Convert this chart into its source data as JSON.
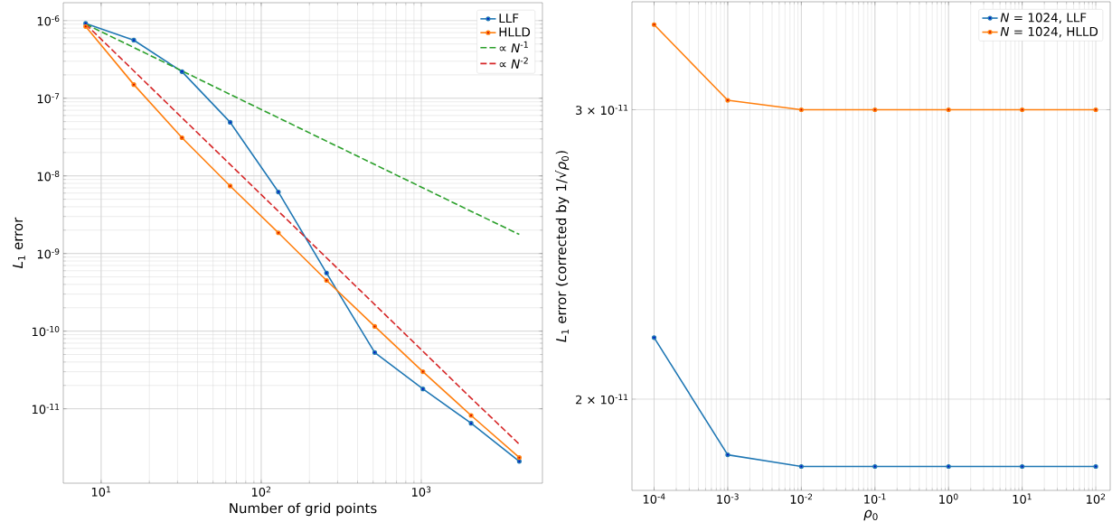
{
  "chart_data": [
    {
      "type": "line",
      "xlabel": "Number of grid points",
      "ylabel": "*L*$_{1}$ error",
      "log": "xy",
      "grid": true,
      "legend": "top right",
      "xlim": [
        5.8,
        5715
      ],
      "ylim": [
        1.1e-12,
        1.7e-06
      ],
      "xticks": [
        {
          "value": 10,
          "label": "10$^{1}$"
        },
        {
          "value": 100,
          "label": "10$^{2}$"
        },
        {
          "value": 1000,
          "label": "10$^{3}$"
        }
      ],
      "yticks": [
        {
          "value": 1e-11,
          "label": "10$^{-11}$"
        },
        {
          "value": 1e-10,
          "label": "10$^{-10}$"
        },
        {
          "value": 1e-09,
          "label": "10$^{-9}$"
        },
        {
          "value": 1e-08,
          "label": "10$^{-8}$"
        },
        {
          "value": 1e-07,
          "label": "10$^{-7}$"
        },
        {
          "value": 1e-06,
          "label": "10$^{-6}$"
        }
      ],
      "x": [
        8,
        16,
        32,
        64,
        128,
        256,
        512,
        1024,
        2048,
        4096
      ],
      "series": [
        {
          "name": "LLF",
          "color": "#1f77b4",
          "marker": "circle",
          "line_style": "solid",
          "values": [
            9.2e-07,
            5.6e-07,
            2.2e-07,
            4.9e-08,
            6.2e-09,
            5.6e-10,
            5.3e-11,
            1.8e-11,
            6.5e-12,
            2.1e-12
          ]
        },
        {
          "name": "HLLD",
          "color": "#ff7f0e",
          "marker": "circle",
          "line_style": "solid",
          "values": [
            8.4e-07,
            1.5e-07,
            3.1e-08,
            7.4e-09,
            1.85e-09,
            4.5e-10,
            1.15e-10,
            3e-11,
            8.2e-12,
            2.35e-12
          ]
        },
        {
          "name": "∝ *N*$^{-1}$",
          "color": "#2ca02c",
          "marker": "none",
          "line_style": "dashed",
          "values": [
            9e-07,
            4.5e-07,
            2.25e-07,
            1.12e-07,
            5.6e-08,
            2.8e-08,
            1.4e-08,
            7e-09,
            3.5e-09,
            1.76e-09
          ]
        },
        {
          "name": "∝ *N*$^{-2}$",
          "color": "#d62728",
          "marker": "none",
          "line_style": "dashed",
          "values": [
            9e-07,
            2.25e-07,
            5.6e-08,
            1.4e-08,
            3.5e-09,
            8.8e-10,
            2.2e-10,
            5.5e-11,
            1.37e-11,
            3.5e-12
          ]
        }
      ]
    },
    {
      "type": "line",
      "xlabel": "*ρ*$_{0}$",
      "ylabel": "*L*$_{1}$ error (corrected by 1/√*ρ*$_{0}$)",
      "log": "xy",
      "grid": true,
      "legend": "top right",
      "xlim": [
        5e-05,
        157
      ],
      "ylim": [
        1.76e-11,
        3.49e-11
      ],
      "xticks": [
        {
          "value": 0.0001,
          "label": "10$^{-4}$"
        },
        {
          "value": 0.001,
          "label": "10$^{-3}$"
        },
        {
          "value": 0.01,
          "label": "10$^{-2}$"
        },
        {
          "value": 0.1,
          "label": "10$^{-1}$"
        },
        {
          "value": 1,
          "label": "10$^{0}$"
        },
        {
          "value": 10,
          "label": "10$^{1}$"
        },
        {
          "value": 100,
          "label": "10$^{2}$"
        }
      ],
      "yticks": [
        {
          "value": 2e-11,
          "label": "2 × 10$^{-11}$"
        },
        {
          "value": 3e-11,
          "label": "3 × 10$^{-11}$"
        }
      ],
      "x": [
        0.0001,
        0.001,
        0.01,
        0.1,
        1,
        10,
        100
      ],
      "series": [
        {
          "name": "*N* = 1024, LLF",
          "color": "#1f77b4",
          "marker": "circle",
          "line_style": "solid",
          "values": [
            2.18e-11,
            1.85e-11,
            1.82e-11,
            1.82e-11,
            1.82e-11,
            1.82e-11,
            1.82e-11
          ]
        },
        {
          "name": "*N* = 1024, HLLD",
          "color": "#ff7f0e",
          "marker": "circle",
          "line_style": "solid",
          "values": [
            3.38e-11,
            3.04e-11,
            3e-11,
            3e-11,
            3e-11,
            3e-11,
            3e-11
          ]
        }
      ]
    }
  ]
}
